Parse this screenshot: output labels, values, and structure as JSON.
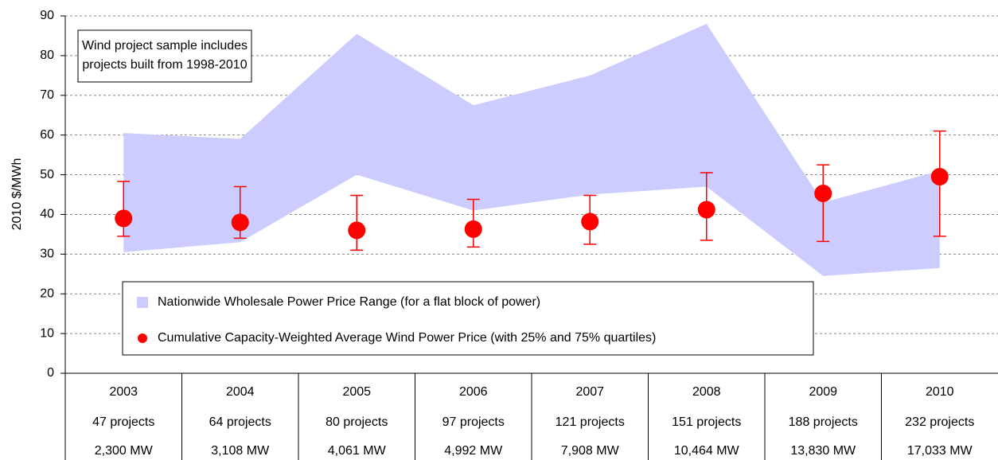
{
  "chart_data": {
    "type": "range_dot",
    "y_axis_label": "2010 $/MWh",
    "annotation": [
      "Wind project sample includes",
      "projects built from 1998-2010"
    ],
    "categories": [
      "2003",
      "2004",
      "2005",
      "2006",
      "2007",
      "2008",
      "2009",
      "2010"
    ],
    "projects": [
      "47 projects",
      "64 projects",
      "80 projects",
      "97 projects",
      "121 projects",
      "151 projects",
      "188 projects",
      "232 projects"
    ],
    "capacity": [
      "2,300 MW",
      "3,108 MW",
      "4,061 MW",
      "4,992 MW",
      "7,908 MW",
      "10,464 MW",
      "13,830 MW",
      "17,033 MW"
    ],
    "ylim": [
      0,
      90
    ],
    "yticks": [
      0,
      10,
      20,
      30,
      40,
      50,
      60,
      70,
      80,
      90
    ],
    "grid": true,
    "series": [
      {
        "name": "Nationwide Wholesale Power Price Range (for a flat block of power)",
        "color": "#ccccff",
        "low": [
          30.5,
          33,
          50,
          41,
          45,
          47,
          24.5,
          26.5
        ],
        "high": [
          60.5,
          59,
          85.5,
          67.5,
          75,
          88,
          43,
          51
        ]
      },
      {
        "name": "Cumulative Capacity-Weighted Average Wind Power Price (with 25% and 75% quartiles)",
        "color": "#ff0000",
        "values": [
          39,
          38,
          36,
          36.3,
          38.2,
          41.2,
          45.3,
          49.5
        ],
        "low": [
          34.5,
          34,
          31,
          31.8,
          32.5,
          33.5,
          33.2,
          34.5
        ],
        "high": [
          48.3,
          47,
          44.8,
          43.8,
          44.8,
          50.5,
          52.5,
          61
        ]
      }
    ]
  }
}
